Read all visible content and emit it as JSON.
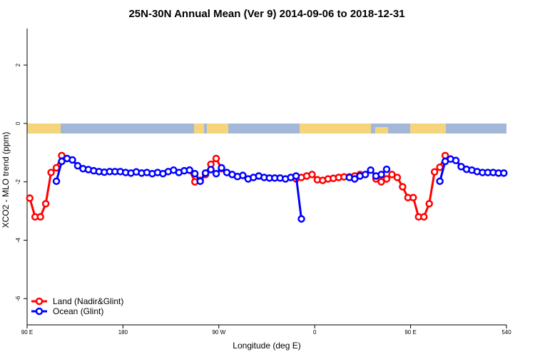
{
  "chart_data": {
    "type": "line",
    "title": "25N-30N Annual Mean (Ver 9)   2014-09-06 to 2018-12-31",
    "x_label": "Longitude (deg E)",
    "y_label": "XCO2 - MLO trend (ppm)",
    "x": [
      92.5,
      97.5,
      102.5,
      107.5,
      112.5,
      117.5,
      122.5,
      127.5,
      132.5,
      137.5,
      142.5,
      147.5,
      152.5,
      157.5,
      162.5,
      167.5,
      172.5,
      177.5,
      182.5,
      187.5,
      192.5,
      197.5,
      202.5,
      207.5,
      212.5,
      217.5,
      222.5,
      227.5,
      232.5,
      237.5,
      242.5,
      247.5,
      252.5,
      257.5,
      262.5,
      267.5,
      272.5,
      277.5,
      282.5,
      287.5,
      292.5,
      297.5,
      302.5,
      307.5,
      312.5,
      317.5,
      322.5,
      327.5,
      332.5,
      337.5,
      342.5,
      347.5,
      352.5,
      357.5,
      362.5,
      367.5,
      372.5,
      377.5,
      382.5,
      387.5,
      392.5,
      397.5,
      402.5,
      407.5,
      412.5,
      417.5,
      422.5,
      427.5,
      432.5,
      437.5,
      442.5,
      447.5,
      452.5,
      457.5,
      462.5,
      467.5,
      472.5,
      477.5,
      482.5,
      487.5,
      492.5,
      497.5,
      502.5,
      507.5,
      512.5,
      517.5,
      522.5,
      527.5,
      532.5,
      537.5
    ],
    "series": [
      {
        "name": "Land (Nadir&Glint)",
        "color": "#ff0000",
        "values": [
          -2.56,
          -3.2,
          -3.2,
          -2.75,
          -1.68,
          -1.52,
          -1.1,
          null,
          null,
          null,
          null,
          null,
          null,
          null,
          null,
          null,
          null,
          null,
          null,
          null,
          null,
          null,
          null,
          null,
          null,
          null,
          null,
          null,
          null,
          null,
          -1.6,
          -2.0,
          -1.95,
          -1.75,
          -1.4,
          -1.2,
          -1.55,
          null,
          null,
          null,
          null,
          null,
          null,
          null,
          null,
          null,
          null,
          null,
          null,
          null,
          -1.9,
          -1.85,
          -1.8,
          -1.75,
          -1.93,
          -1.95,
          -1.9,
          -1.88,
          -1.85,
          -1.83,
          -1.83,
          -1.8,
          -1.75,
          null,
          null,
          -1.9,
          -2.0,
          -1.9,
          -1.75,
          -1.85,
          -2.17,
          -2.54,
          -2.54,
          -3.2,
          -3.2,
          -2.75,
          -1.66,
          -1.5,
          -1.1,
          null,
          null,
          null,
          null,
          null,
          null,
          null,
          null,
          null,
          null,
          null
        ]
      },
      {
        "name": "Ocean (Glint)",
        "color": "#0000ff",
        "values": [
          null,
          null,
          null,
          null,
          null,
          -1.98,
          -1.3,
          -1.2,
          -1.25,
          -1.45,
          -1.55,
          -1.58,
          -1.62,
          -1.65,
          -1.67,
          -1.65,
          -1.65,
          -1.65,
          -1.68,
          -1.7,
          -1.66,
          -1.7,
          -1.68,
          -1.72,
          -1.68,
          -1.72,
          -1.65,
          -1.6,
          -1.68,
          -1.62,
          -1.6,
          -1.72,
          -1.98,
          -1.7,
          -1.58,
          -1.72,
          -1.52,
          -1.68,
          -1.75,
          -1.82,
          -1.78,
          -1.9,
          -1.85,
          -1.8,
          -1.85,
          -1.87,
          -1.87,
          -1.87,
          -1.9,
          -1.85,
          -1.8,
          -3.27,
          null,
          null,
          null,
          null,
          null,
          null,
          null,
          null,
          -1.85,
          -1.9,
          -1.8,
          -1.75,
          -1.6,
          -1.8,
          -1.75,
          -1.57,
          null,
          null,
          null,
          null,
          null,
          null,
          null,
          null,
          null,
          -1.98,
          -1.3,
          -1.22,
          -1.27,
          -1.48,
          -1.57,
          -1.6,
          -1.65,
          -1.68,
          -1.68,
          -1.68,
          -1.7,
          -1.7
        ]
      }
    ],
    "xlim": [
      90,
      540
    ],
    "xticks": [
      {
        "value": 90,
        "label": "90 E"
      },
      180,
      {
        "value": 270,
        "label": "90 W"
      },
      {
        "value": 360,
        "label": "0"
      },
      {
        "value": 450,
        "label": "90 E"
      },
      540
    ],
    "ylim": [
      -6.9,
      3.25
    ],
    "yticks": [
      -6,
      -4,
      -2,
      0,
      2
    ],
    "legend": "bottom-left",
    "grid": false
  }
}
